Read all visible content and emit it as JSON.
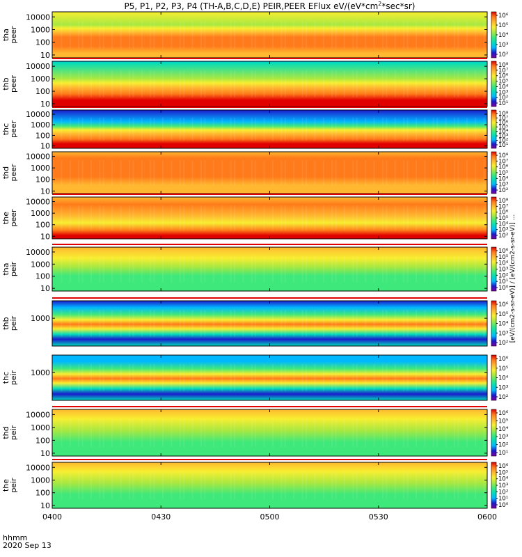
{
  "title_parts": {
    "a": "P5, P1, P2, P3, P4 (TH-A,B,C,D,E) PEIR,PEER EFlux eV/(eV*cm",
    "sup": "2",
    "b": "*sec*sr)"
  },
  "x_axis": {
    "label": "hhmm",
    "date": "2020 Sep 13",
    "ticks": [
      "0400",
      "0430",
      "0500",
      "0530",
      "0600"
    ],
    "range_hhmm": [
      "0400",
      "0600"
    ]
  },
  "colorbar_label": "[eV/(cm2-s-sr-eV)] / [eV/(cm2-s-sr-eV)] ...",
  "colorscale": [
    "#7a00a0",
    "#1b1bcc",
    "#00b8ff",
    "#00ddbb",
    "#3ee87a",
    "#a8e840",
    "#f8ee30",
    "#ffb830",
    "#ff7a1a",
    "#e00000"
  ],
  "chart_data": {
    "type": "heatmap",
    "title": "P5, P1, P2, P3, P4 (TH-A,B,C,D,E) PEIR,PEER EFlux eV/(eV*cm2*sec*sr)",
    "xlabel": "hhmm",
    "date": "2020 Sep 13",
    "xticks": [
      "0400",
      "0430",
      "0500",
      "0530",
      "0600"
    ],
    "colorbar": {
      "scale": "log",
      "ticks": [
        "10^2",
        "10^3",
        "10^4",
        "10^5",
        "10^6"
      ]
    },
    "panels": [
      {
        "name": "tha peer",
        "label": [
          "tha",
          "peer"
        ],
        "yscale": "log",
        "yticks": [
          10000,
          1000,
          100,
          10
        ],
        "cticks": [
          "10^6",
          "10^5",
          "10^4",
          "10^3",
          "10^2"
        ]
      },
      {
        "name": "thb peer",
        "label": [
          "thb",
          "peer"
        ],
        "yscale": "log",
        "yticks": [
          10000,
          1000,
          100,
          10
        ],
        "cticks": [
          "10^8",
          "10^7",
          "10^6",
          "10^5",
          "10^4",
          "10^3",
          "10^2",
          "10^1"
        ]
      },
      {
        "name": "thc peer",
        "label": [
          "thc",
          "peer"
        ],
        "yscale": "log",
        "yticks": [
          10000,
          1000,
          100,
          10
        ],
        "cticks": [
          "10^8",
          "10^7",
          "10^6",
          "10^5",
          "10^4",
          "10^3",
          "10^2",
          "10^1"
        ]
      },
      {
        "name": "thd peer",
        "label": [
          "thd",
          "peer"
        ],
        "yscale": "log",
        "yticks": [
          10000,
          1000,
          100,
          10
        ],
        "cticks": [
          "10^8",
          "10^7",
          "10^6",
          "10^5",
          "10^4",
          "10^3",
          "10^2"
        ]
      },
      {
        "name": "the peer",
        "label": [
          "the",
          "peer"
        ],
        "yscale": "log",
        "yticks": [
          10000,
          1000,
          100,
          10
        ],
        "cticks": [
          "10^8",
          "10^7",
          "10^6",
          "10^5",
          "10^4",
          "10^3",
          "10^2"
        ]
      },
      {
        "name": "tha peir",
        "label": [
          "tha",
          "peir"
        ],
        "yscale": "log",
        "yticks": [
          10000,
          1000,
          100,
          10
        ],
        "cticks": [
          "10^6",
          "10^5",
          "10^4",
          "10^3",
          "10^2",
          "10^1",
          "10^0"
        ]
      },
      {
        "name": "thb peir",
        "label": [
          "thb",
          "peir"
        ],
        "yscale": "log",
        "yticks": [
          1000
        ],
        "cticks": [
          "10^6",
          "10^5",
          "10^4",
          "10^3",
          "10^2"
        ]
      },
      {
        "name": "thc peir",
        "label": [
          "thc",
          "peir"
        ],
        "yscale": "log",
        "yticks": [
          1000
        ],
        "cticks": [
          "10^6",
          "10^5",
          "10^4",
          "10^3",
          "10^2"
        ]
      },
      {
        "name": "thd peir",
        "label": [
          "thd",
          "peir"
        ],
        "yscale": "log",
        "yticks": [
          10000,
          1000,
          100,
          10
        ],
        "cticks": [
          "10^6",
          "10^5",
          "10^4",
          "10^3",
          "10^2",
          "10^1"
        ]
      },
      {
        "name": "the peir",
        "label": [
          "the",
          "peir"
        ],
        "yscale": "log",
        "yticks": [
          10000,
          1000,
          100,
          10
        ],
        "cticks": [
          "10^6",
          "10^5",
          "10^4",
          "10^3",
          "10^2",
          "10^1",
          "10^0"
        ]
      }
    ]
  }
}
